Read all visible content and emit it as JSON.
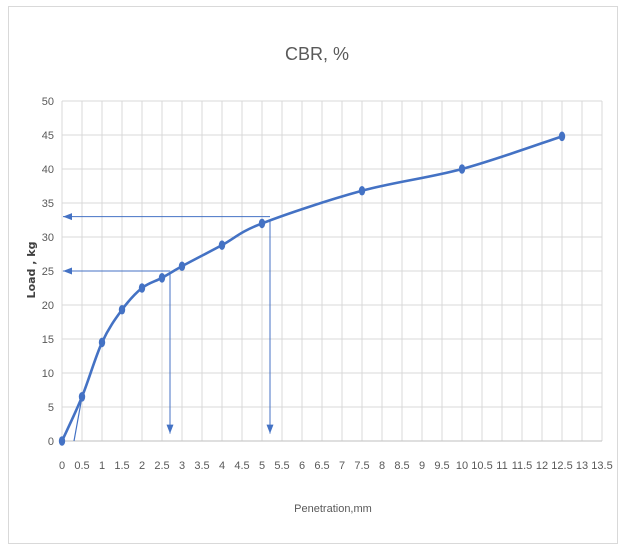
{
  "chart_data": {
    "type": "line",
    "title": "CBR, %",
    "xlabel": "Penetration,mm",
    "ylabel": "Load , kg",
    "xlim": [
      0,
      13.5
    ],
    "ylim": [
      0,
      50
    ],
    "x_tick_labels": [
      "0",
      "0.5",
      "1",
      "1.5",
      "2",
      "2.5",
      "3",
      "3.5",
      "4",
      "4.5",
      "5",
      "5.5",
      "6",
      "6.5",
      "7",
      "7.5",
      "8",
      "8.5",
      "9",
      "9.5",
      "10",
      "10.5",
      "11",
      "11.5",
      "12",
      "12.5",
      "13",
      "13.5"
    ],
    "y_tick_labels": [
      "0",
      "5",
      "10",
      "15",
      "20",
      "25",
      "30",
      "35",
      "40",
      "45",
      "50"
    ],
    "grid": true,
    "legend": "none",
    "series": [
      {
        "color": "#4472c4",
        "x": [
          0,
          0.5,
          1,
          1.5,
          2,
          2.5,
          3,
          4,
          5,
          7.5,
          10,
          12.5
        ],
        "y": [
          0,
          6.5,
          14.5,
          19.3,
          22.5,
          24,
          25.7,
          28.8,
          32,
          36.8,
          40,
          44.8
        ]
      }
    ],
    "correction_line": {
      "x": [
        0.3,
        0.5
      ],
      "y": [
        0,
        6.5
      ]
    },
    "annotations": [
      {
        "type": "arrow-down",
        "x_from": 2.7,
        "y_from": 24.5,
        "y_to": 0.5
      },
      {
        "type": "arrow-left",
        "y": 25,
        "x_from": 2.7,
        "x_to": 0
      },
      {
        "type": "arrow-down",
        "x_from": 5.2,
        "y_from": 32.5,
        "y_to": 0.5
      },
      {
        "type": "arrow-left",
        "y": 33,
        "x_from": 5.2,
        "x_to": 0
      }
    ]
  }
}
